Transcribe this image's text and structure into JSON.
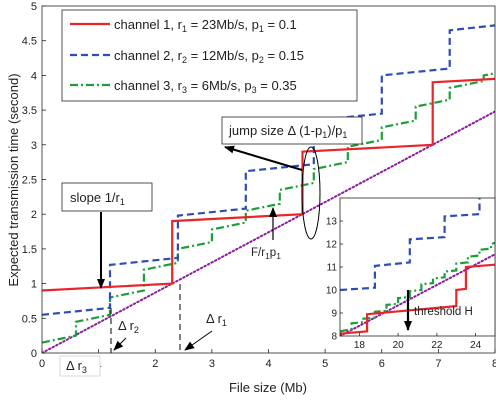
{
  "chart_data": {
    "type": "line",
    "xlabel": "File size (Mb)",
    "ylabel": "Expected transmission time (second)",
    "xlim": [
      0,
      8
    ],
    "ylim": [
      0,
      5
    ],
    "xticks": [
      "0",
      "1",
      "2",
      "3",
      "4",
      "5",
      "6",
      "7",
      "8"
    ],
    "yticks": [
      "0",
      "0.5",
      "1",
      "1.5",
      "2",
      "2.5",
      "3",
      "3.5",
      "4",
      "4.5",
      "5"
    ],
    "grid": false,
    "legend_position": "top-left",
    "series": [
      {
        "name": "channel 1, r<sub>1</sub> = 23Mb/s, p<sub>1</sub> = 0.1",
        "legend_parts": [
          "channel 1, r",
          "1",
          " = 23Mb/s, p",
          "1",
          " = 0.1"
        ],
        "color": "#e8262a",
        "dash": "solid",
        "points": [
          [
            0,
            0.9
          ],
          [
            2.3,
            1.0
          ],
          [
            2.3,
            1.9
          ],
          [
            4.6,
            2.0
          ],
          [
            4.6,
            2.9
          ],
          [
            6.9,
            3.0
          ],
          [
            6.9,
            3.9
          ],
          [
            8.0,
            3.95
          ]
        ]
      },
      {
        "name": "channel 2, r<sub>2</sub> = 12Mb/s, p<sub>2</sub> = 0.15",
        "legend_parts": [
          "channel 2, r",
          "2",
          " = 12Mb/s, p",
          "2",
          " = 0.15"
        ],
        "color": "#2e4db5",
        "dash": "dashed",
        "points": [
          [
            0,
            0.55
          ],
          [
            1.2,
            0.65
          ],
          [
            1.2,
            1.27
          ],
          [
            2.4,
            1.37
          ],
          [
            2.4,
            1.98
          ],
          [
            3.6,
            2.08
          ],
          [
            3.6,
            2.62
          ],
          [
            4.8,
            2.72
          ],
          [
            4.8,
            3.35
          ],
          [
            6.0,
            3.45
          ],
          [
            6.0,
            4.0
          ],
          [
            7.2,
            4.1
          ],
          [
            7.2,
            4.65
          ],
          [
            8.0,
            4.72
          ]
        ]
      },
      {
        "name": "channel 3, r<sub>3</sub> = 6Mb/s, p<sub>3</sub> = 0.35",
        "legend_parts": [
          "channel 3, r",
          "3",
          " = 6Mb/s, p",
          "3",
          " = 0.35"
        ],
        "color": "#1e9e3a",
        "dash": "dashdot",
        "points": [
          [
            0,
            0.15
          ],
          [
            0.6,
            0.25
          ],
          [
            0.6,
            0.45
          ],
          [
            1.2,
            0.55
          ],
          [
            1.2,
            0.8
          ],
          [
            1.8,
            0.9
          ],
          [
            1.8,
            1.2
          ],
          [
            2.4,
            1.3
          ],
          [
            2.4,
            1.5
          ],
          [
            3.0,
            1.6
          ],
          [
            3.0,
            1.78
          ],
          [
            3.6,
            1.88
          ],
          [
            3.6,
            2.05
          ],
          [
            4.2,
            2.15
          ],
          [
            4.2,
            2.35
          ],
          [
            4.8,
            2.45
          ],
          [
            4.8,
            2.65
          ],
          [
            5.4,
            2.75
          ],
          [
            5.4,
            2.97
          ],
          [
            6.0,
            3.07
          ],
          [
            6.0,
            3.25
          ],
          [
            6.6,
            3.35
          ],
          [
            6.6,
            3.55
          ],
          [
            7.2,
            3.65
          ],
          [
            7.2,
            3.82
          ],
          [
            7.8,
            3.92
          ],
          [
            7.8,
            4.0
          ],
          [
            8.0,
            4.03
          ]
        ]
      },
      {
        "name": "F/r1p1",
        "color": "#8b1a9e",
        "dash": "dotted",
        "points": [
          [
            0,
            0
          ],
          [
            8.0,
            3.48
          ]
        ]
      }
    ],
    "annotations": {
      "slope_label": "slope 1/r",
      "slope_sub": "1",
      "jump_label": "jump size Δ (1-p",
      "jump_sub": "1",
      "jump_tail": ")/p",
      "jump_sub2": "1",
      "f_label": "F/r",
      "f_sub1": "1",
      "f_mid": "p",
      "f_sub2": "1",
      "delta_r1": "Δ r",
      "delta_r1_sub": "1",
      "delta_r2": "Δ r",
      "delta_r2_sub": "2",
      "delta_r3": "Δ r",
      "delta_r3_sub": "3"
    },
    "inset": {
      "xlim": [
        17,
        25
      ],
      "ylim": [
        8,
        14
      ],
      "xticks": [
        "18",
        "20",
        "22",
        "24"
      ],
      "yticks": [
        "8",
        "9",
        "10",
        "11",
        "12",
        "13"
      ],
      "threshold_label": "threshold H",
      "series": [
        {
          "name": "channel 1",
          "color": "#e8262a",
          "dash": "solid",
          "points": [
            [
              17,
              8.1
            ],
            [
              18.4,
              8.2
            ],
            [
              18.4,
              8.95
            ],
            [
              23.0,
              9.3
            ],
            [
              23.0,
              10.0
            ],
            [
              23.5,
              10.05
            ],
            [
              23.5,
              11.0
            ],
            [
              25,
              11.1
            ]
          ]
        },
        {
          "name": "channel 2",
          "color": "#2e4db5",
          "dash": "dashed",
          "points": [
            [
              17,
              10.0
            ],
            [
              18.8,
              10.1
            ],
            [
              18.8,
              11.05
            ],
            [
              20.6,
              11.2
            ],
            [
              20.6,
              12.2
            ],
            [
              22.4,
              12.3
            ],
            [
              22.4,
              13.2
            ],
            [
              24.2,
              13.3
            ],
            [
              24.2,
              14.2
            ],
            [
              25,
              14.3
            ]
          ]
        },
        {
          "name": "channel 3",
          "color": "#1e9e3a",
          "dash": "dashdot",
          "points": [
            [
              17,
              8.2
            ],
            [
              17.6,
              8.3
            ],
            [
              17.6,
              8.55
            ],
            [
              18.2,
              8.6
            ],
            [
              18.2,
              8.75
            ],
            [
              18.8,
              8.8
            ],
            [
              18.8,
              9.05
            ],
            [
              19.4,
              9.1
            ],
            [
              19.4,
              9.35
            ],
            [
              20.0,
              9.4
            ],
            [
              20.0,
              9.65
            ],
            [
              20.6,
              9.7
            ],
            [
              20.6,
              9.95
            ],
            [
              21.2,
              10.0
            ],
            [
              21.2,
              10.25
            ],
            [
              21.8,
              10.3
            ],
            [
              21.8,
              10.5
            ],
            [
              22.4,
              10.55
            ],
            [
              22.4,
              10.8
            ],
            [
              23.0,
              10.85
            ],
            [
              23.0,
              11.15
            ],
            [
              23.6,
              11.2
            ],
            [
              23.6,
              11.45
            ],
            [
              24.2,
              11.5
            ],
            [
              24.2,
              11.75
            ],
            [
              24.8,
              11.8
            ],
            [
              24.8,
              12.0
            ],
            [
              25,
              12.05
            ]
          ]
        },
        {
          "name": "F/r1p1",
          "color": "#8b1a9e",
          "dash": "dotted",
          "points": [
            [
              17,
              8.0
            ],
            [
              25,
              11.55
            ]
          ]
        }
      ]
    }
  }
}
